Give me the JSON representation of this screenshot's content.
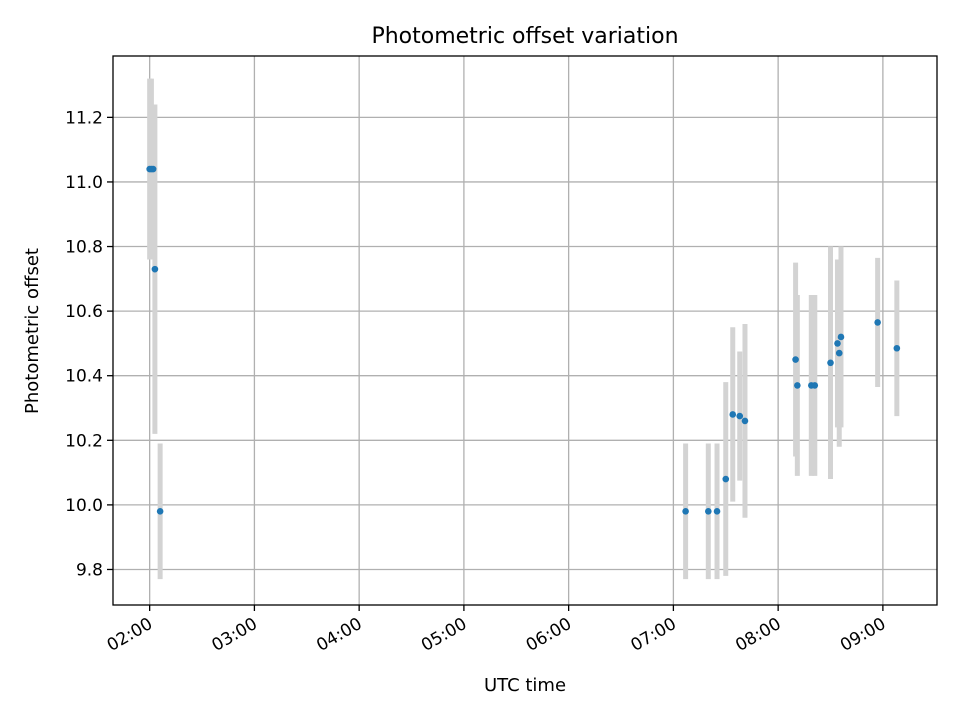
{
  "chart_data": {
    "type": "scatter",
    "title": "Photometric offset variation",
    "xlabel": "UTC time",
    "ylabel": "Photometric offset",
    "x_axis": {
      "type": "time",
      "min": "01:39",
      "max": "09:31",
      "ticks": [
        "02:00",
        "03:00",
        "04:00",
        "05:00",
        "06:00",
        "07:00",
        "08:00",
        "09:00"
      ],
      "tick_rotation": 30
    },
    "y_axis": {
      "min": 9.69,
      "max": 11.39,
      "ticks": [
        9.8,
        10.0,
        10.2,
        10.4,
        10.6,
        10.8,
        11.0,
        11.2
      ],
      "tick_labels": [
        "9.8",
        "10.0",
        "10.2",
        "10.4",
        "10.6",
        "10.8",
        "11.0",
        "11.2"
      ]
    },
    "grid": true,
    "colors": {
      "point": "#1f77b4",
      "errorbar": "#d3d3d3"
    },
    "points": [
      {
        "x": "02:00",
        "y": 11.04,
        "yerr": 0.28
      },
      {
        "x": "02:01",
        "y": 11.04,
        "yerr": 0.28
      },
      {
        "x": "02:02",
        "y": 11.04,
        "yerr": 0.2
      },
      {
        "x": "02:03",
        "y": 10.73,
        "yerr": 0.51
      },
      {
        "x": "02:06",
        "y": 9.98,
        "yerr": 0.21
      },
      {
        "x": "07:07",
        "y": 9.98,
        "yerr": 0.21
      },
      {
        "x": "07:20",
        "y": 9.98,
        "yerr": 0.21
      },
      {
        "x": "07:25",
        "y": 9.98,
        "yerr": 0.21
      },
      {
        "x": "07:30",
        "y": 10.08,
        "yerr": 0.3
      },
      {
        "x": "07:34",
        "y": 10.28,
        "yerr": 0.27
      },
      {
        "x": "07:38",
        "y": 10.275,
        "yerr": 0.2
      },
      {
        "x": "07:41",
        "y": 10.26,
        "yerr": 0.3
      },
      {
        "x": "08:10",
        "y": 10.45,
        "yerr": 0.3
      },
      {
        "x": "08:11",
        "y": 10.37,
        "yerr": 0.28
      },
      {
        "x": "08:19",
        "y": 10.37,
        "yerr": 0.28
      },
      {
        "x": "08:21",
        "y": 10.37,
        "yerr": 0.28
      },
      {
        "x": "08:30",
        "y": 10.44,
        "yerr": 0.36
      },
      {
        "x": "08:34",
        "y": 10.5,
        "yerr": 0.26
      },
      {
        "x": "08:35",
        "y": 10.47,
        "yerr": 0.29
      },
      {
        "x": "08:36",
        "y": 10.52,
        "yerr": 0.28
      },
      {
        "x": "08:57",
        "y": 10.565,
        "yerr": 0.2
      },
      {
        "x": "09:08",
        "y": 10.485,
        "yerr": 0.21
      }
    ]
  }
}
